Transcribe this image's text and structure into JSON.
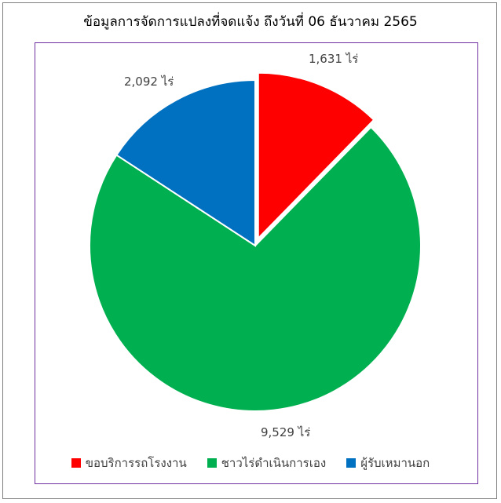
{
  "chart_data": {
    "type": "pie",
    "title": "ข้อมูลการจัดการแปลงที่จดแจ้ง ถึงวันที่ 06 ธันวาคม 2565",
    "unit": "ไร่",
    "categories": [
      "ขอบริการรถโรงงาน",
      "ชาวไร่ดำเนินการเอง",
      "ผู้รับเหมานอก"
    ],
    "values": [
      1631,
      9529,
      2092
    ],
    "data_labels": [
      "1,631 ไร่",
      "9,529 ไร่",
      "2,092 ไร่"
    ],
    "colors": [
      "#ff0000",
      "#00b050",
      "#0070c0"
    ],
    "exploded": [
      true,
      false,
      false
    ],
    "legend_position": "bottom"
  }
}
